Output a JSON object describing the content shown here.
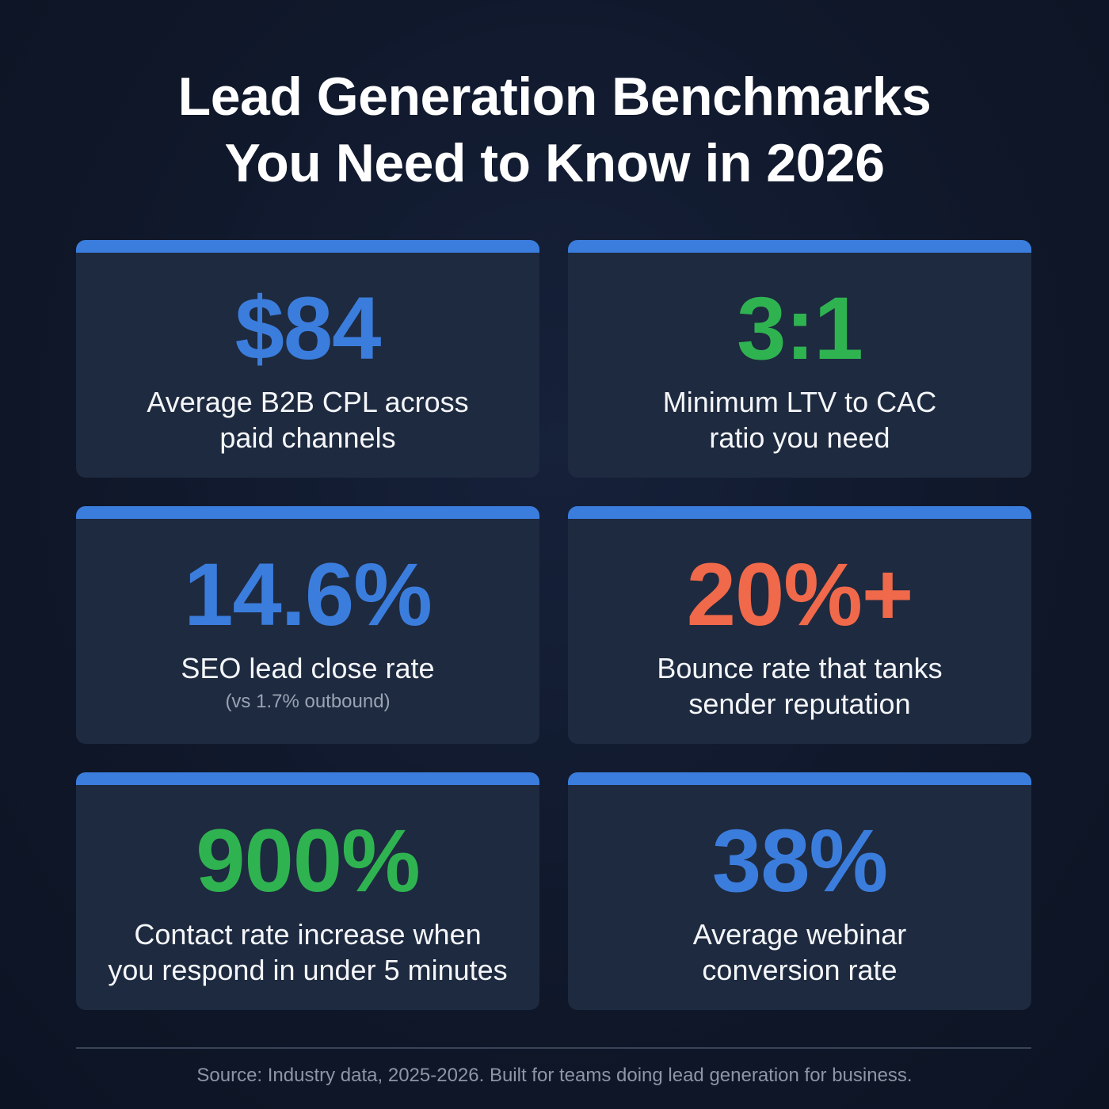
{
  "title": {
    "line1": "Lead Generation Benchmarks",
    "line2": "You Need to Know in 2026"
  },
  "colors": {
    "blue": "#3b7ddd",
    "green": "#2fb351",
    "orange": "#f0694a",
    "card_bg": "#1e2a3f",
    "page_bg": "#0f1729"
  },
  "cards": [
    {
      "value": "$84",
      "desc1": "Average B2B CPL across",
      "desc2": "paid channels",
      "color": "#3b7ddd"
    },
    {
      "value": "3:1",
      "desc1": "Minimum LTV to CAC",
      "desc2": "ratio you need",
      "color": "#2fb351"
    },
    {
      "value": "14.6%",
      "desc1": "SEO lead close rate",
      "sub": "(vs 1.7% outbound)",
      "color": "#3b7ddd"
    },
    {
      "value": "20%+",
      "desc1": "Bounce rate that tanks",
      "desc2": "sender reputation",
      "color": "#f0694a"
    },
    {
      "value": "900%",
      "desc1": "Contact rate increase when",
      "desc2": "you respond in under 5 minutes",
      "color": "#2fb351"
    },
    {
      "value": "38%",
      "desc1": "Average webinar",
      "desc2": "conversion rate",
      "color": "#3b7ddd"
    }
  ],
  "source": "Source: Industry data, 2025-2026. Built for teams doing lead generation for business."
}
